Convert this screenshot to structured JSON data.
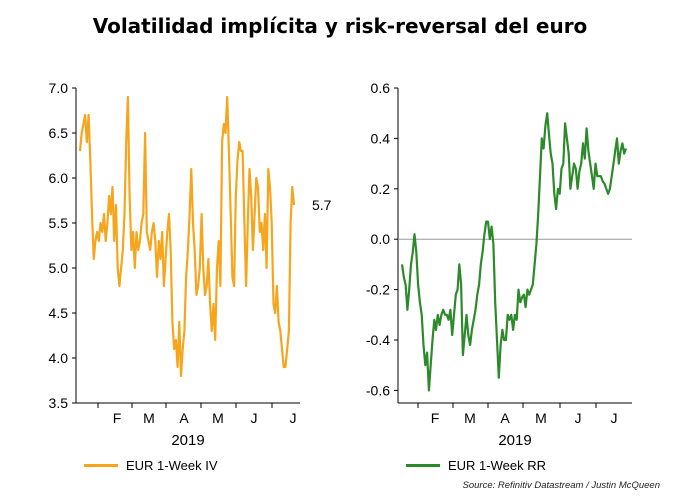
{
  "title": "Volatilidad implícita y risk-reversal del euro",
  "source": "Source: Refinitiv Datastream / Justin McQueen",
  "colors": {
    "iv": "#f7a51d",
    "rr": "#2c8a2a",
    "axis": "#000000",
    "zero": "#9a9a9a"
  },
  "chart_data": [
    {
      "type": "line",
      "title": "",
      "xlabel": "2019",
      "ylabel": "",
      "ylim": [
        3.5,
        7.0
      ],
      "yticks": [
        "7.0",
        "6.5",
        "6.0",
        "5.5",
        "5.0",
        "4.5",
        "4.0",
        "3.5"
      ],
      "xticks": [
        "F",
        "M",
        "A",
        "M",
        "J",
        "J"
      ],
      "legend": "bottom-left",
      "end_label": "5.7",
      "series": [
        {
          "name": "EUR 1-Week IV",
          "x": [
            0,
            1,
            2,
            3,
            4,
            5,
            6,
            7,
            8,
            9,
            10,
            11,
            12,
            13,
            14,
            15,
            16,
            17,
            18,
            19,
            20,
            21,
            22,
            23,
            24,
            25,
            26,
            27,
            28,
            29,
            30,
            31,
            32,
            33,
            34,
            35,
            36,
            37,
            38,
            39,
            40,
            41,
            42,
            43,
            44,
            45,
            46,
            47,
            48,
            49,
            50,
            51,
            52,
            53,
            54,
            55,
            56,
            57,
            58,
            59,
            60,
            61,
            62,
            63,
            64,
            65,
            66,
            67,
            68,
            69,
            70,
            71,
            72,
            73,
            74,
            75,
            76,
            77,
            78,
            79,
            80,
            81,
            82,
            83,
            84,
            85,
            86,
            87,
            88,
            89,
            90,
            91,
            92,
            93,
            94,
            95,
            96,
            97,
            98,
            99,
            100,
            101,
            102,
            103,
            104,
            105,
            106,
            107,
            108,
            109,
            110,
            111,
            112,
            113,
            114,
            115,
            116,
            117,
            118,
            119,
            120,
            121,
            122,
            123,
            124,
            125
          ],
          "values": [
            6.3,
            6.5,
            6.6,
            6.7,
            6.4,
            6.7,
            6.2,
            5.6,
            5.1,
            5.3,
            5.4,
            5.3,
            5.5,
            5.4,
            5.6,
            5.3,
            5.5,
            5.8,
            5.6,
            5.9,
            5.3,
            5.7,
            5.0,
            4.8,
            5.0,
            5.2,
            5.6,
            6.4,
            6.9,
            5.8,
            5.2,
            5.4,
            5.0,
            5.4,
            5.2,
            5.3,
            5.5,
            5.6,
            6.5,
            5.4,
            5.3,
            5.2,
            5.4,
            5.5,
            5.3,
            4.9,
            5.3,
            5.1,
            5.4,
            4.8,
            5.1,
            5.4,
            5.6,
            5.2,
            4.4,
            4.1,
            4.2,
            3.9,
            4.4,
            3.8,
            4.1,
            4.3,
            4.9,
            5.2,
            5.6,
            6.1,
            5.5,
            5.2,
            4.7,
            4.8,
            5.0,
            5.6,
            5.0,
            4.7,
            4.8,
            5.1,
            4.6,
            4.3,
            4.6,
            4.2,
            5.0,
            5.3,
            4.8,
            6.4,
            6.6,
            6.5,
            6.9,
            6.3,
            5.6,
            4.9,
            4.8,
            5.8,
            6.2,
            6.4,
            6.3,
            6.3,
            5.5,
            4.8,
            5.5,
            6.1,
            5.8,
            5.2,
            5.6,
            6.0,
            5.9,
            5.4,
            5.5,
            5.2,
            5.6,
            5.0,
            6.1,
            5.9,
            5.5,
            4.6,
            4.5,
            4.8,
            4.4,
            4.3,
            4.1,
            3.9,
            3.9,
            4.1,
            4.3,
            5.5,
            5.9,
            5.7
          ]
        }
      ]
    },
    {
      "type": "line",
      "title": "",
      "xlabel": "2019",
      "ylabel": "",
      "ylim": [
        -0.65,
        0.6
      ],
      "yticks": [
        "0.6",
        "0.4",
        "0.2",
        "0.0",
        "-0.2",
        "-0.4",
        "-0.6"
      ],
      "xticks": [
        "F",
        "M",
        "A",
        "M",
        "J",
        "J"
      ],
      "legend": "bottom-left",
      "series": [
        {
          "name": "EUR 1-Week RR",
          "x": [
            0,
            1,
            2,
            3,
            4,
            5,
            6,
            7,
            8,
            9,
            10,
            11,
            12,
            13,
            14,
            15,
            16,
            17,
            18,
            19,
            20,
            21,
            22,
            23,
            24,
            25,
            26,
            27,
            28,
            29,
            30,
            31,
            32,
            33,
            34,
            35,
            36,
            37,
            38,
            39,
            40,
            41,
            42,
            43,
            44,
            45,
            46,
            47,
            48,
            49,
            50,
            51,
            52,
            53,
            54,
            55,
            56,
            57,
            58,
            59,
            60,
            61,
            62,
            63,
            64,
            65,
            66,
            67,
            68,
            69,
            70,
            71,
            72,
            73,
            74,
            75,
            76,
            77,
            78,
            79,
            80,
            81,
            82,
            83,
            84,
            85,
            86,
            87,
            88,
            89,
            90,
            91,
            92,
            93,
            94,
            95,
            96,
            97,
            98,
            99,
            100,
            101,
            102,
            103,
            104,
            105,
            106,
            107,
            108,
            109,
            110,
            111,
            112,
            113,
            114,
            115,
            116,
            117,
            118,
            119,
            120,
            121,
            122,
            123,
            124,
            125
          ],
          "values": [
            -0.1,
            -0.15,
            -0.18,
            -0.28,
            -0.2,
            -0.1,
            -0.05,
            0.02,
            -0.05,
            -0.18,
            -0.25,
            -0.3,
            -0.42,
            -0.5,
            -0.45,
            -0.6,
            -0.5,
            -0.4,
            -0.32,
            -0.36,
            -0.3,
            -0.34,
            -0.3,
            -0.28,
            -0.3,
            -0.3,
            -0.32,
            -0.28,
            -0.38,
            -0.3,
            -0.22,
            -0.2,
            -0.1,
            -0.18,
            -0.46,
            -0.38,
            -0.3,
            -0.38,
            -0.42,
            -0.36,
            -0.32,
            -0.28,
            -0.22,
            -0.18,
            -0.1,
            -0.05,
            0.02,
            0.07,
            0.07,
            0.0,
            0.05,
            -0.02,
            -0.25,
            -0.4,
            -0.55,
            -0.42,
            -0.36,
            -0.4,
            -0.4,
            -0.3,
            -0.32,
            -0.3,
            -0.36,
            -0.3,
            -0.32,
            -0.2,
            -0.25,
            -0.23,
            -0.22,
            -0.27,
            -0.2,
            -0.22,
            -0.2,
            -0.18,
            -0.1,
            -0.02,
            0.1,
            0.25,
            0.4,
            0.36,
            0.45,
            0.5,
            0.42,
            0.34,
            0.3,
            0.18,
            0.12,
            0.2,
            0.18,
            0.28,
            0.3,
            0.46,
            0.4,
            0.34,
            0.2,
            0.25,
            0.3,
            0.28,
            0.2,
            0.27,
            0.3,
            0.38,
            0.32,
            0.44,
            0.35,
            0.3,
            0.25,
            0.2,
            0.3,
            0.25,
            0.25,
            0.25,
            0.23,
            0.22,
            0.2,
            0.18,
            0.2,
            0.25,
            0.3,
            0.35,
            0.4,
            0.3,
            0.35,
            0.38,
            0.34,
            0.36
          ]
        }
      ]
    }
  ]
}
